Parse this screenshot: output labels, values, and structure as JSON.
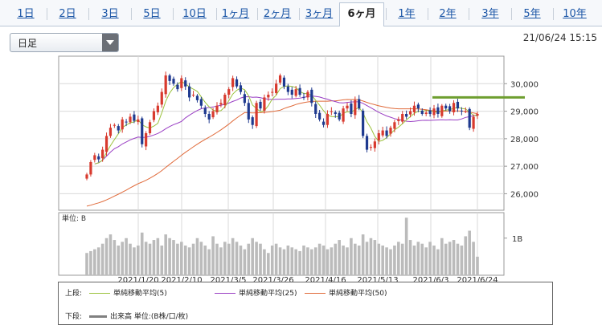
{
  "tabs": [
    {
      "label": "1日",
      "active": false
    },
    {
      "label": "2日",
      "active": false
    },
    {
      "label": "3日",
      "active": false
    },
    {
      "label": "5日",
      "active": false
    },
    {
      "label": "10日",
      "active": false
    },
    {
      "label": "1ヶ月",
      "active": false
    },
    {
      "label": "2ヶ月",
      "active": false
    },
    {
      "label": "3ヶ月",
      "active": false
    },
    {
      "label": "6ヶ月",
      "active": true
    },
    {
      "label": "1年",
      "active": false
    },
    {
      "label": "2年",
      "active": false
    },
    {
      "label": "3年",
      "active": false
    },
    {
      "label": "5年",
      "active": false
    },
    {
      "label": "10年",
      "active": false
    }
  ],
  "period_select": {
    "value": "日足"
  },
  "timestamp": "21/06/24 15:15",
  "legend": {
    "upper_label": "上段:",
    "lower_label": "下段:",
    "ma5": "単純移動平均(5)",
    "ma25": "単純移動平均(25)",
    "ma50": "単純移動平均(50)",
    "volume": "出来高 単位:(B株/口/枚)"
  },
  "colors": {
    "up": "#d83a2e",
    "down": "#1f3a8f",
    "ma5": "#9bc23c",
    "ma25": "#9a3fc4",
    "ma50": "#e06a3a",
    "resistance": "#6e9e2f",
    "volume": "#bbbbbb"
  },
  "chart_data": {
    "type": "candlestick",
    "price_axis": {
      "ticks": [
        26000,
        27000,
        28000,
        29000,
        30000
      ],
      "labels": [
        "26,000",
        "27,000",
        "28,000",
        "29,000",
        "30,000"
      ],
      "ylim": [
        25400,
        31000
      ]
    },
    "date_labels": [
      "2021/1/20",
      "2021/2/10",
      "2021/3/5",
      "2021/3/26",
      "2021/4/16",
      "2021/5/13",
      "2021/6/3",
      "2021/6/24"
    ],
    "volume_axis": {
      "unit_label": "単位: B",
      "tick_label": "1B",
      "tick_value": 1.0,
      "max": 1.6
    },
    "resistance_level": 29500,
    "closes": [
      26700,
      27150,
      27400,
      27250,
      27600,
      28100,
      28400,
      28500,
      28300,
      28700,
      28600,
      28800,
      28650,
      28700,
      27800,
      28200,
      28600,
      29000,
      29200,
      29700,
      30300,
      30100,
      30000,
      29800,
      30200,
      29900,
      29500,
      29600,
      29400,
      29200,
      28900,
      28700,
      29000,
      29200,
      29300,
      29600,
      29800,
      30200,
      29900,
      29700,
      29300,
      28700,
      28500,
      29300,
      29100,
      29500,
      29600,
      29700,
      30000,
      30300,
      29900,
      29700,
      29600,
      29800,
      29600,
      29500,
      29700,
      29300,
      28900,
      28700,
      28500,
      28900,
      29000,
      28900,
      28700,
      29100,
      29200,
      28900,
      29400,
      29100,
      28100,
      27600,
      27700,
      27900,
      28200,
      28300,
      28100,
      28400,
      28600,
      28700,
      28900,
      28800,
      29000,
      29200,
      29100,
      28900,
      28950,
      28900,
      29100,
      28900,
      29200,
      29100,
      29000,
      29300,
      29100,
      29000,
      29000,
      28400,
      28800,
      28900
    ],
    "volumes": [
      0.6,
      0.65,
      0.7,
      0.75,
      0.85,
      1.0,
      1.1,
      0.95,
      0.8,
      0.9,
      1.0,
      0.85,
      0.75,
      0.8,
      1.15,
      0.9,
      0.85,
      0.95,
      1.0,
      0.8,
      1.1,
      1.0,
      0.95,
      0.85,
      0.9,
      0.8,
      0.75,
      0.85,
      1.0,
      0.9,
      0.8,
      0.7,
      1.05,
      0.85,
      0.75,
      0.9,
      0.85,
      1.0,
      0.9,
      0.8,
      0.7,
      0.85,
      1.0,
      0.9,
      0.85,
      0.7,
      0.6,
      0.8,
      0.85,
      0.75,
      0.7,
      0.8,
      0.75,
      0.7,
      0.65,
      0.8,
      0.75,
      0.7,
      0.75,
      0.85,
      0.8,
      0.7,
      0.75,
      0.85,
      0.95,
      0.8,
      0.75,
      1.0,
      0.85,
      0.8,
      1.1,
      0.9,
      1.0,
      0.95,
      0.85,
      0.8,
      0.75,
      0.7,
      0.8,
      0.9,
      0.85,
      1.55,
      0.95,
      0.8,
      0.9,
      0.85,
      0.75,
      0.9,
      0.8,
      0.7,
      1.0,
      0.85,
      0.9,
      0.95,
      0.85,
      0.8,
      1.05,
      1.2,
      0.9,
      0.5
    ]
  }
}
